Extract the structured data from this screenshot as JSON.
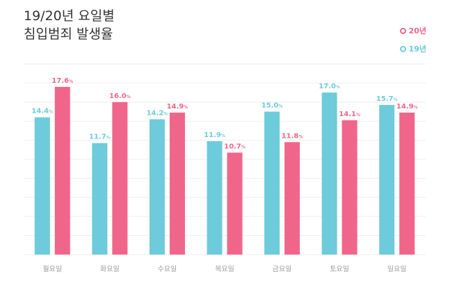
{
  "header": {
    "title_line1": "19/20년 요일별",
    "title_line2": "침입범죄 발생율"
  },
  "colors": {
    "y20": "#f0668b",
    "y19": "#6dcbdb",
    "grid": "#eeeeee",
    "tick": "#999999"
  },
  "chart_data": {
    "type": "bar",
    "title": "19/20년 요일별 침입범죄 발생율",
    "categories": [
      "월요일",
      "화요일",
      "수요일",
      "목요일",
      "금요일",
      "토요일",
      "일요일"
    ],
    "series": [
      {
        "name": "19년",
        "values": [
          14.4,
          11.7,
          14.2,
          11.9,
          15.0,
          17.0,
          15.7
        ]
      },
      {
        "name": "20년",
        "values": [
          17.6,
          16.0,
          14.9,
          10.7,
          11.8,
          14.1,
          14.9
        ]
      }
    ],
    "value_suffix": "%",
    "ylim": [
      0,
      20
    ],
    "grid": true,
    "legend": "top-right"
  }
}
